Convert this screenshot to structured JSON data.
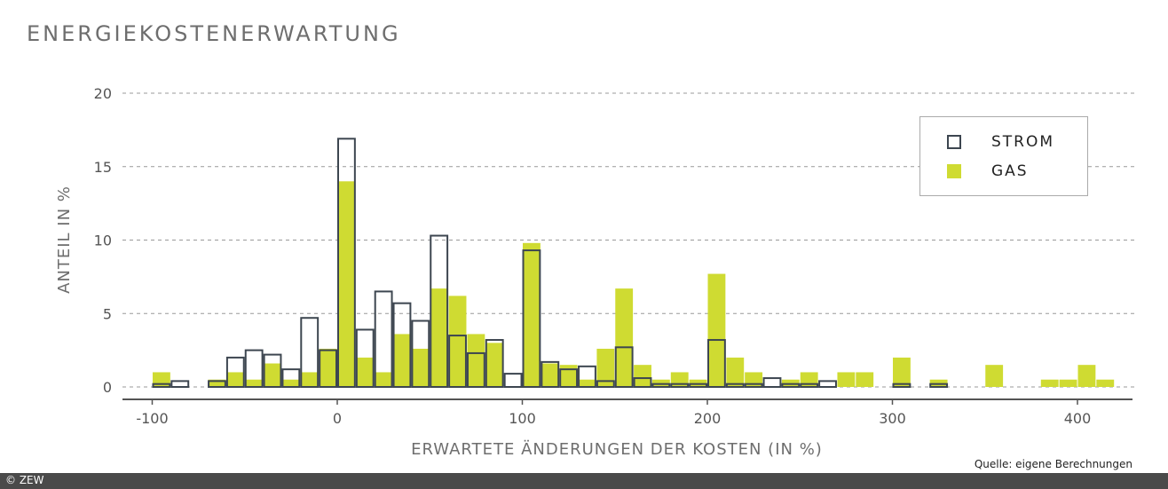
{
  "title": "ENERGIEKOSTENERWARTUNG",
  "source": "Quelle: eigene Berechnungen",
  "footer": "© ZEW",
  "colors": {
    "strom": "#3d4650",
    "gas": "#cfdb32",
    "grid": "#999999"
  },
  "chart_data": {
    "type": "bar",
    "title": "ENERGIEKOSTENERWARTUNG",
    "xlabel": "ERWARTETE ÄNDERUNGEN DER KOSTEN (IN %)",
    "ylabel": "ANTEIL IN %",
    "xlim": [
      -100,
      420
    ],
    "ylim": [
      0,
      20
    ],
    "xticks": [
      "-100",
      "0",
      "100",
      "200",
      "300",
      "400"
    ],
    "yticks": [
      "0",
      "5",
      "10",
      "15",
      "20"
    ],
    "grid": true,
    "legend_position": "top-right",
    "bin_width": 10,
    "bin_starts": [
      -100,
      -90,
      -80,
      -70,
      -60,
      -50,
      -40,
      -30,
      -20,
      -10,
      0,
      10,
      20,
      30,
      40,
      50,
      60,
      70,
      80,
      90,
      100,
      110,
      120,
      130,
      140,
      150,
      160,
      170,
      180,
      190,
      200,
      210,
      220,
      230,
      240,
      250,
      260,
      270,
      280,
      290,
      300,
      310,
      320,
      330,
      340,
      350,
      360,
      370,
      380,
      390,
      400,
      410
    ],
    "series": [
      {
        "name": "STROM",
        "style": "outline",
        "values": [
          0.2,
          0.4,
          0,
          0.4,
          2.0,
          2.5,
          2.2,
          1.2,
          4.7,
          2.5,
          16.9,
          3.9,
          6.5,
          5.7,
          4.5,
          10.3,
          3.5,
          2.3,
          3.2,
          0.9,
          9.3,
          1.7,
          1.2,
          1.4,
          0.4,
          2.7,
          0.6,
          0.2,
          0.2,
          0.2,
          3.2,
          0.2,
          0.2,
          0.6,
          0.2,
          0.2,
          0.4,
          0,
          0,
          0,
          0.2,
          0,
          0.2,
          0,
          0,
          0,
          0,
          0,
          0,
          0,
          0,
          0
        ]
      },
      {
        "name": "GAS",
        "style": "filled",
        "values": [
          1.0,
          0,
          0,
          0.5,
          1.0,
          0.5,
          1.6,
          0.5,
          1.0,
          2.6,
          14.0,
          2.0,
          1.0,
          3.6,
          2.6,
          6.7,
          6.2,
          3.6,
          3.0,
          0,
          9.8,
          1.6,
          1.5,
          0.5,
          2.6,
          6.7,
          1.5,
          0.5,
          1.0,
          0.5,
          7.7,
          2.0,
          1.0,
          0,
          0.5,
          1.0,
          0,
          1.0,
          1.0,
          0,
          2.0,
          0,
          0.5,
          0,
          0,
          1.5,
          0,
          0,
          0.5,
          0.5,
          1.5,
          0.5
        ]
      }
    ]
  }
}
